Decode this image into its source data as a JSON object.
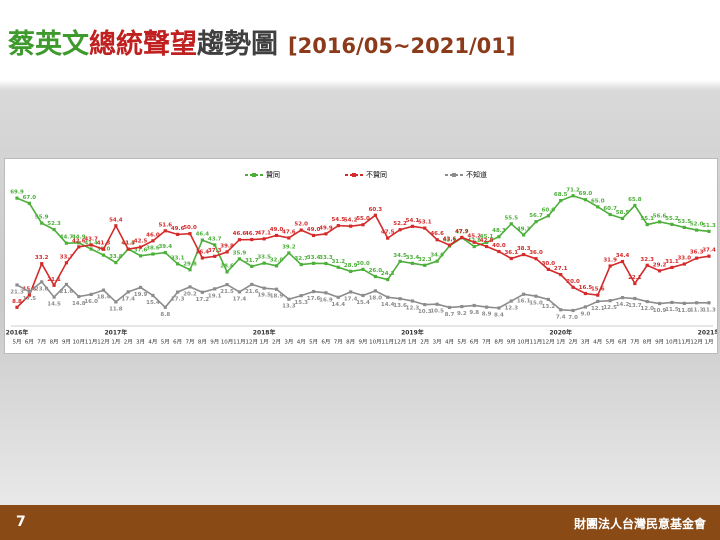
{
  "title_parts": [
    "蔡英文",
    "總統聲望",
    "趨勢圖",
    "[2016/05~2021/01]"
  ],
  "footer": {
    "page": "7",
    "organization": "財團法人台灣民意基金會"
  },
  "chart_data": {
    "type": "line",
    "categories": [
      "5月",
      "6月",
      "7月",
      "8月",
      "9月",
      "10月",
      "11月",
      "12月",
      "1月",
      "2月",
      "3月",
      "4月",
      "5月",
      "6月",
      "7月",
      "8月",
      "9月",
      "10月",
      "11月",
      "12月",
      "1月",
      "2月",
      "3月",
      "4月",
      "5月",
      "6月",
      "7月",
      "8月",
      "9月",
      "10月",
      "11月",
      "12月",
      "1月",
      "2月",
      "3月",
      "4月",
      "5月",
      "6月",
      "7月",
      "8月",
      "9月",
      "10月",
      "11月",
      "12月",
      "1月",
      "2月",
      "3月",
      "4月",
      "5月",
      "6月",
      "7月",
      "8月",
      "9月",
      "10月",
      "11月",
      "12月",
      "1月"
    ],
    "category_years": [
      "2016年",
      null,
      null,
      null,
      null,
      null,
      null,
      null,
      "2017年",
      null,
      null,
      null,
      null,
      null,
      null,
      null,
      null,
      null,
      null,
      null,
      "2018年",
      null,
      null,
      null,
      null,
      null,
      null,
      null,
      null,
      null,
      null,
      null,
      "2019年",
      null,
      null,
      null,
      null,
      null,
      null,
      null,
      null,
      null,
      null,
      null,
      "2020年",
      null,
      null,
      null,
      null,
      null,
      null,
      null,
      null,
      null,
      null,
      null,
      "2021年"
    ],
    "ylim": [
      0,
      75
    ],
    "series": [
      {
        "name": "贊同",
        "color": "#4caf3a",
        "values": [
          69.9,
          67.0,
          55.9,
          52.3,
          44.7,
          44.9,
          41.4,
          38.0,
          33.8,
          41.4,
          37.6,
          38.6,
          39.4,
          33.1,
          29.8,
          46.4,
          43.7,
          28.6,
          35.9,
          31.7,
          33.5,
          32.0,
          39.2,
          32.7,
          33.4,
          33.3,
          31.2,
          28.9,
          30.0,
          26.0,
          24.3,
          34.5,
          33.4,
          32.3,
          34.6,
          43.1,
          47.7,
          42.8,
          45.1,
          48.3,
          55.5,
          49.3,
          56.7,
          60.0,
          68.5,
          71.2,
          69.0,
          65.0,
          60.7,
          58.5,
          65.8,
          55.1,
          56.6,
          55.2,
          53.5,
          52.0,
          51.3
        ],
        "value_labels": [
          "69.9",
          "67.0",
          "55.9",
          "52.3",
          "44.7",
          "44.9",
          "41.4",
          "38.0",
          "33.8",
          "41.4",
          "37.6",
          "38.6",
          "39.4",
          "33.1",
          "29.8",
          "46.4",
          "43.7",
          "28.6",
          "35.9",
          "31.7",
          "33.5",
          "32.0",
          "39.2",
          "32.7",
          "33.4",
          "33.3",
          "31.2",
          "28.9",
          "30.0",
          "26.0",
          "24.3",
          "34.5",
          "33.4",
          "32.3",
          "34.6",
          "43.1",
          "47.7",
          "42.8",
          "45.1",
          "48.3",
          "55.5",
          "49.3",
          "56.7",
          "60.0",
          "68.5",
          "71.2",
          "69.0",
          "65.0",
          "60.7",
          "58.5",
          "65.8",
          "55.1",
          "56.6",
          "55.2",
          "53.5",
          "52.0",
          "51.3"
        ]
      },
      {
        "name": "不贊同",
        "color": "#d42a2a",
        "values": [
          8.8,
          15.6,
          33.2,
          21.1,
          33.7,
          42.6,
          43.7,
          41.3,
          54.4,
          41.3,
          42.5,
          46.0,
          51.6,
          49.6,
          50.0,
          36.4,
          37.3,
          39.8,
          46.6,
          46.7,
          47.1,
          49.0,
          47.6,
          52.0,
          49.0,
          49.9,
          54.5,
          54.2,
          55.0,
          60.3,
          47.5,
          52.2,
          54.1,
          53.1,
          46.6,
          43.6,
          47.9,
          45.2,
          42.8,
          40.0,
          36.1,
          38.3,
          36.0,
          30.0,
          27.1,
          20.0,
          16.5,
          15.6,
          31.9,
          34.4,
          22.1,
          32.3,
          29.2,
          31.1,
          33.0,
          36.3,
          37.4
        ],
        "value_labels": [
          "8.8",
          "15.6",
          "33.2",
          "21.1",
          "33.7",
          "42.6",
          "43.7",
          "41.3",
          "54.4",
          "41.3",
          "42.5",
          "46.0",
          "51.6",
          "49.6",
          "50.0",
          "36.4",
          "37.3",
          "39.8",
          "46.6",
          "46.7",
          "47.1",
          "49.0",
          "47.6",
          "52.0",
          "49.0",
          "49.9",
          "54.5",
          "54.2",
          "55.0",
          "60.3",
          "47.5",
          "52.2",
          "54.1",
          "53.1",
          "46.6",
          "43.6",
          "47.9",
          "45.2",
          "42.8",
          "40.0",
          "36.1",
          "38.3",
          "36.0",
          "30.0",
          "27.1",
          "20.0",
          "16.5",
          "15.6",
          "31.9",
          "34.4",
          "22.1",
          "32.3",
          "29.2",
          "31.1",
          "33.0",
          "36.3",
          "37.4"
        ]
      },
      {
        "name": "不知道",
        "color": "#8c8c8c",
        "values": [
          21.3,
          17.5,
          23.0,
          14.5,
          21.6,
          14.8,
          16.0,
          18.4,
          11.8,
          17.4,
          19.9,
          15.4,
          8.8,
          17.3,
          20.2,
          17.2,
          19.1,
          21.5,
          17.4,
          21.6,
          19.5,
          18.9,
          13.3,
          15.3,
          17.6,
          16.9,
          14.4,
          17.4,
          15.4,
          18.0,
          14.4,
          13.6,
          12.3,
          10.3,
          10.5,
          8.7,
          9.2,
          9.8,
          8.9,
          8.4,
          12.3,
          16.1,
          15.0,
          13.2,
          7.4,
          7.0,
          9.0,
          12.1,
          12.5,
          14.2,
          13.7,
          12.0,
          10.9,
          11.5,
          11.0,
          11.3,
          11.3
        ],
        "value_labels": [
          "21.3",
          "17.5",
          "23.0",
          "14.5",
          "21.6",
          "14.8",
          "16.0",
          "18.4",
          "11.8",
          "17.4",
          "19.9",
          "15.4",
          "8.8",
          "17.3",
          "20.2",
          "17.2",
          "19.1",
          "21.5",
          "17.4",
          "21.6",
          "19.5",
          "18.9",
          "13.3",
          "15.3",
          "17.6",
          "16.9",
          "14.4",
          "17.4",
          "15.4",
          "18.0",
          "14.4",
          "13.6",
          "12.3",
          "10.3",
          "10.5",
          "8.7",
          "9.2",
          "9.8",
          "8.9",
          "8.4",
          "12.3",
          "16.1",
          "15.0",
          "13.2",
          "7.4",
          "7.0",
          "9.0",
          "12.1",
          "12.5",
          "14.2",
          "13.7",
          "12.0",
          "10.9",
          "11.5",
          "11.0",
          "11.3",
          "11.3"
        ]
      }
    ]
  }
}
